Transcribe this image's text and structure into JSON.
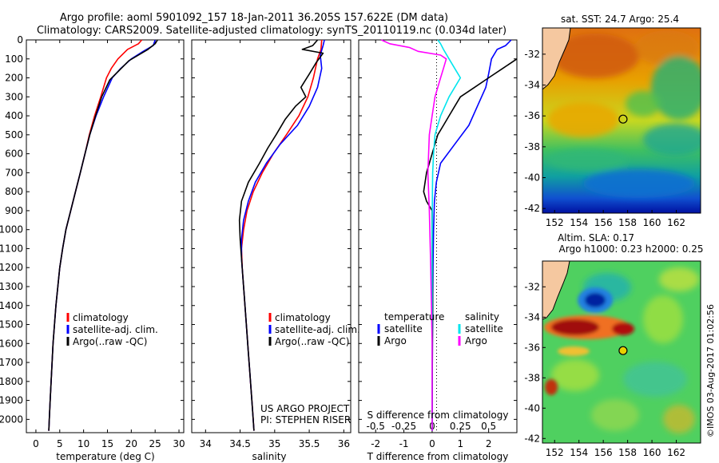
{
  "header": {
    "line1": "Argo profile: aoml 5901092_157 18-Jan-2011 36.205S 157.622E (DM data)",
    "line2": "Climatology: CARS2009. Satellite-adjusted climatology: synTS_20110119.nc (0.034d later)"
  },
  "credit": "US ARGO PROJECT",
  "pi": "PI: STEPHEN RISER",
  "stamp": "©IMOS 03-Aug-2017 01:02:56",
  "colors": {
    "clim": "#ff0000",
    "sat": "#0000ff",
    "argo": "#000000",
    "sal_sat": "#00e5ee",
    "sal_argo": "#ff00ff"
  },
  "chart_data": [
    {
      "type": "line",
      "id": "temperature",
      "xlabel": "temperature (deg C)",
      "ylabel": "",
      "xlim": [
        -2,
        31
      ],
      "ylim": [
        2070,
        0
      ],
      "xticks": [
        0,
        5,
        10,
        15,
        20,
        25,
        30
      ],
      "yticks": [
        0,
        100,
        200,
        300,
        400,
        500,
        600,
        700,
        800,
        900,
        1000,
        1100,
        1200,
        1300,
        1400,
        1500,
        1600,
        1700,
        1800,
        1900,
        2000
      ],
      "legend": [
        "climatology",
        "satellite-adj. clim.",
        "Argo(..raw -QC)"
      ],
      "series": [
        {
          "name": "climatology",
          "color": "#ff0000",
          "points": [
            [
              22.2,
              0
            ],
            [
              21.5,
              20
            ],
            [
              19.2,
              50
            ],
            [
              17.2,
              100
            ],
            [
              15.8,
              150
            ],
            [
              14.8,
              200
            ],
            [
              13.6,
              300
            ],
            [
              12.3,
              400
            ],
            [
              11.2,
              500
            ],
            [
              10.3,
              600
            ],
            [
              9.3,
              700
            ],
            [
              8.3,
              800
            ],
            [
              7.3,
              900
            ],
            [
              6.3,
              1000
            ],
            [
              5.6,
              1100
            ],
            [
              5.0,
              1200
            ],
            [
              4.6,
              1300
            ],
            [
              4.2,
              1400
            ],
            [
              3.9,
              1500
            ],
            [
              3.6,
              1600
            ],
            [
              3.4,
              1700
            ],
            [
              3.2,
              1800
            ],
            [
              3.0,
              1900
            ],
            [
              2.8,
              2000
            ],
            [
              2.7,
              2060
            ]
          ]
        },
        {
          "name": "satellite-adj. clim.",
          "color": "#0000ff",
          "points": [
            [
              25.0,
              0
            ],
            [
              24.6,
              30
            ],
            [
              22.5,
              60
            ],
            [
              20.0,
              100
            ],
            [
              17.8,
              150
            ],
            [
              16.0,
              200
            ],
            [
              14.2,
              300
            ],
            [
              12.6,
              400
            ],
            [
              11.3,
              500
            ],
            [
              10.3,
              600
            ],
            [
              9.3,
              700
            ],
            [
              8.3,
              800
            ],
            [
              7.3,
              900
            ],
            [
              6.3,
              1000
            ],
            [
              5.6,
              1100
            ],
            [
              5.0,
              1200
            ],
            [
              4.6,
              1300
            ],
            [
              4.2,
              1400
            ],
            [
              3.9,
              1500
            ],
            [
              3.6,
              1600
            ],
            [
              3.4,
              1700
            ],
            [
              3.2,
              1800
            ],
            [
              3.0,
              1900
            ],
            [
              2.8,
              2000
            ],
            [
              2.7,
              2060
            ]
          ]
        },
        {
          "name": "Argo(..raw -QC)",
          "color": "#000000",
          "points": [
            [
              25.5,
              0
            ],
            [
              25.0,
              20
            ],
            [
              23.5,
              50
            ],
            [
              21.5,
              80
            ],
            [
              19.5,
              110
            ],
            [
              17.5,
              160
            ],
            [
              15.5,
              210
            ],
            [
              13.8,
              300
            ],
            [
              12.5,
              400
            ],
            [
              11.3,
              500
            ],
            [
              10.3,
              600
            ],
            [
              9.3,
              700
            ],
            [
              8.3,
              800
            ],
            [
              7.3,
              900
            ],
            [
              6.3,
              1000
            ],
            [
              5.6,
              1100
            ],
            [
              5.0,
              1200
            ],
            [
              4.6,
              1300
            ],
            [
              4.2,
              1400
            ],
            [
              3.9,
              1500
            ],
            [
              3.6,
              1600
            ],
            [
              3.4,
              1700
            ],
            [
              3.2,
              1800
            ],
            [
              3.0,
              1900
            ],
            [
              2.8,
              2000
            ],
            [
              2.7,
              2060
            ]
          ]
        }
      ]
    },
    {
      "type": "line",
      "id": "salinity",
      "xlabel": "salinity",
      "ylabel": "",
      "xlim": [
        33.8,
        36.1
      ],
      "ylim": [
        2070,
        0
      ],
      "xticks": [
        34,
        34.5,
        35,
        35.5,
        36
      ],
      "legend": [
        "climatology",
        "satellite-adj. clim.",
        "Argo(..raw -QC)"
      ],
      "series": [
        {
          "name": "climatology",
          "color": "#ff0000",
          "points": [
            [
              35.68,
              0
            ],
            [
              35.67,
              50
            ],
            [
              35.62,
              100
            ],
            [
              35.56,
              200
            ],
            [
              35.48,
              300
            ],
            [
              35.35,
              400
            ],
            [
              35.17,
              500
            ],
            [
              34.98,
              600
            ],
            [
              34.82,
              700
            ],
            [
              34.69,
              800
            ],
            [
              34.6,
              900
            ],
            [
              34.55,
              1000
            ],
            [
              34.52,
              1100
            ],
            [
              34.53,
              1200
            ],
            [
              34.55,
              1300
            ],
            [
              34.57,
              1400
            ],
            [
              34.59,
              1500
            ],
            [
              34.61,
              1600
            ],
            [
              34.63,
              1700
            ],
            [
              34.65,
              1800
            ],
            [
              34.67,
              1900
            ],
            [
              34.69,
              2000
            ],
            [
              34.7,
              2060
            ]
          ]
        },
        {
          "name": "satellite-adj. clim.",
          "color": "#0000ff",
          "points": [
            [
              35.72,
              0
            ],
            [
              35.7,
              30
            ],
            [
              35.66,
              80
            ],
            [
              35.68,
              150
            ],
            [
              35.62,
              250
            ],
            [
              35.5,
              350
            ],
            [
              35.33,
              450
            ],
            [
              35.08,
              550
            ],
            [
              34.88,
              650
            ],
            [
              34.72,
              750
            ],
            [
              34.62,
              850
            ],
            [
              34.55,
              950
            ],
            [
              34.52,
              1050
            ],
            [
              34.52,
              1150
            ],
            [
              34.54,
              1250
            ],
            [
              34.56,
              1350
            ],
            [
              34.58,
              1450
            ],
            [
              34.6,
              1550
            ],
            [
              34.62,
              1650
            ],
            [
              34.64,
              1750
            ],
            [
              34.66,
              1850
            ],
            [
              34.68,
              1950
            ],
            [
              34.7,
              2060
            ]
          ]
        },
        {
          "name": "Argo(..raw -QC)",
          "color": "#000000",
          "points": [
            [
              35.62,
              0
            ],
            [
              35.55,
              30
            ],
            [
              35.4,
              50
            ],
            [
              35.7,
              70
            ],
            [
              35.6,
              120
            ],
            [
              35.5,
              180
            ],
            [
              35.38,
              250
            ],
            [
              35.45,
              300
            ],
            [
              35.3,
              350
            ],
            [
              35.15,
              420
            ],
            [
              35.02,
              500
            ],
            [
              34.9,
              570
            ],
            [
              34.78,
              650
            ],
            [
              34.62,
              750
            ],
            [
              34.52,
              850
            ],
            [
              34.49,
              950
            ],
            [
              34.5,
              1050
            ],
            [
              34.52,
              1150
            ],
            [
              34.54,
              1250
            ],
            [
              34.56,
              1350
            ],
            [
              34.58,
              1450
            ],
            [
              34.6,
              1550
            ],
            [
              34.62,
              1650
            ],
            [
              34.64,
              1750
            ],
            [
              34.66,
              1850
            ],
            [
              34.68,
              1950
            ],
            [
              34.7,
              2060
            ]
          ]
        }
      ]
    },
    {
      "type": "line",
      "id": "difference",
      "xlabel": "T difference from climatology",
      "xlabel2": "S difference from climatology",
      "ylabel": "",
      "xlim": [
        -2.6,
        3.0
      ],
      "ylim": [
        2070,
        0
      ],
      "xticks": [
        -2,
        -1,
        0,
        1,
        2
      ],
      "xticks2": [
        [
          "-0.5",
          -2
        ],
        [
          "-0.25",
          -1
        ],
        [
          "0",
          0
        ],
        [
          "0.25",
          1
        ],
        [
          "0.5",
          2
        ]
      ],
      "legend_headers": [
        "temperature",
        "salinity"
      ],
      "legend": [
        "satellite",
        "Argo",
        "satellite",
        "Argo"
      ],
      "series": [
        {
          "name": "temperature satellite",
          "color": "#0000ff",
          "points": [
            [
              2.8,
              0
            ],
            [
              2.6,
              30
            ],
            [
              2.3,
              50
            ],
            [
              2.1,
              100
            ],
            [
              2.0,
              180
            ],
            [
              1.9,
              250
            ],
            [
              1.6,
              350
            ],
            [
              1.3,
              450
            ],
            [
              0.8,
              550
            ],
            [
              0.3,
              650
            ],
            [
              0.15,
              750
            ],
            [
              0.08,
              850
            ],
            [
              0.05,
              1000
            ],
            [
              0.03,
              1200
            ],
            [
              0.02,
              1400
            ],
            [
              0.01,
              1600
            ],
            [
              0.0,
              2060
            ]
          ]
        },
        {
          "name": "temperature Argo",
          "color": "#000000",
          "points": [
            [
              3.0,
              100
            ],
            [
              2.5,
              150
            ],
            [
              2.0,
              200
            ],
            [
              1.5,
              250
            ],
            [
              1.0,
              300
            ],
            [
              0.8,
              350
            ],
            [
              0.6,
              400
            ],
            [
              0.4,
              450
            ],
            [
              0.2,
              500
            ],
            [
              0.0,
              600
            ],
            [
              -0.2,
              700
            ],
            [
              -0.3,
              800
            ],
            [
              -0.2,
              850
            ],
            [
              0.0,
              900
            ],
            [
              0.0,
              1000
            ],
            [
              0.01,
              1200
            ],
            [
              0.02,
              1400
            ],
            [
              0.01,
              1600
            ],
            [
              0.0,
              2060
            ]
          ]
        },
        {
          "name": "salinity satellite",
          "color": "#00e5ee",
          "points": [
            [
              0.2,
              0
            ],
            [
              0.3,
              20
            ],
            [
              0.4,
              50
            ],
            [
              0.6,
              100
            ],
            [
              0.8,
              150
            ],
            [
              1.0,
              200
            ],
            [
              0.6,
              300
            ],
            [
              0.3,
              400
            ],
            [
              0.1,
              500
            ],
            [
              0.05,
              600
            ],
            [
              0.02,
              700
            ],
            [
              0.01,
              800
            ],
            [
              0.0,
              1000
            ],
            [
              0.0,
              2060
            ]
          ]
        },
        {
          "name": "salinity Argo",
          "color": "#ff00ff",
          "points": [
            [
              -1.8,
              0
            ],
            [
              -1.5,
              20
            ],
            [
              -0.8,
              40
            ],
            [
              -0.5,
              60
            ],
            [
              0.3,
              80
            ],
            [
              0.5,
              100
            ],
            [
              0.4,
              150
            ],
            [
              0.3,
              200
            ],
            [
              0.2,
              250
            ],
            [
              0.1,
              300
            ],
            [
              0.0,
              400
            ],
            [
              -0.1,
              500
            ],
            [
              -0.15,
              700
            ],
            [
              -0.1,
              900
            ],
            [
              -0.05,
              1200
            ],
            [
              0.0,
              1600
            ],
            [
              0.0,
              2060
            ]
          ]
        }
      ]
    },
    {
      "type": "heatmap",
      "id": "sst-map",
      "title": "sat. SST: 24.7 Argo: 25.4",
      "xticks": [
        152,
        154,
        156,
        158,
        160,
        162
      ],
      "yticks": [
        -32,
        -34,
        -36,
        -38,
        -40,
        -42
      ],
      "xlim": [
        151,
        164
      ],
      "ylim": [
        -42.3,
        -30.3
      ],
      "marker": [
        157.622,
        -36.205
      ]
    },
    {
      "type": "heatmap",
      "id": "sla-map",
      "title": "Altim. SLA: 0.17",
      "subtitle": "Argo h1000: 0.23 h2000: 0.25",
      "xticks": [
        152,
        154,
        156,
        158,
        160,
        162
      ],
      "yticks": [
        -32,
        -34,
        -36,
        -38,
        -40,
        -42
      ],
      "xlim": [
        151,
        164
      ],
      "ylim": [
        -42.3,
        -30.3
      ],
      "marker": [
        157.622,
        -36.205
      ]
    }
  ]
}
